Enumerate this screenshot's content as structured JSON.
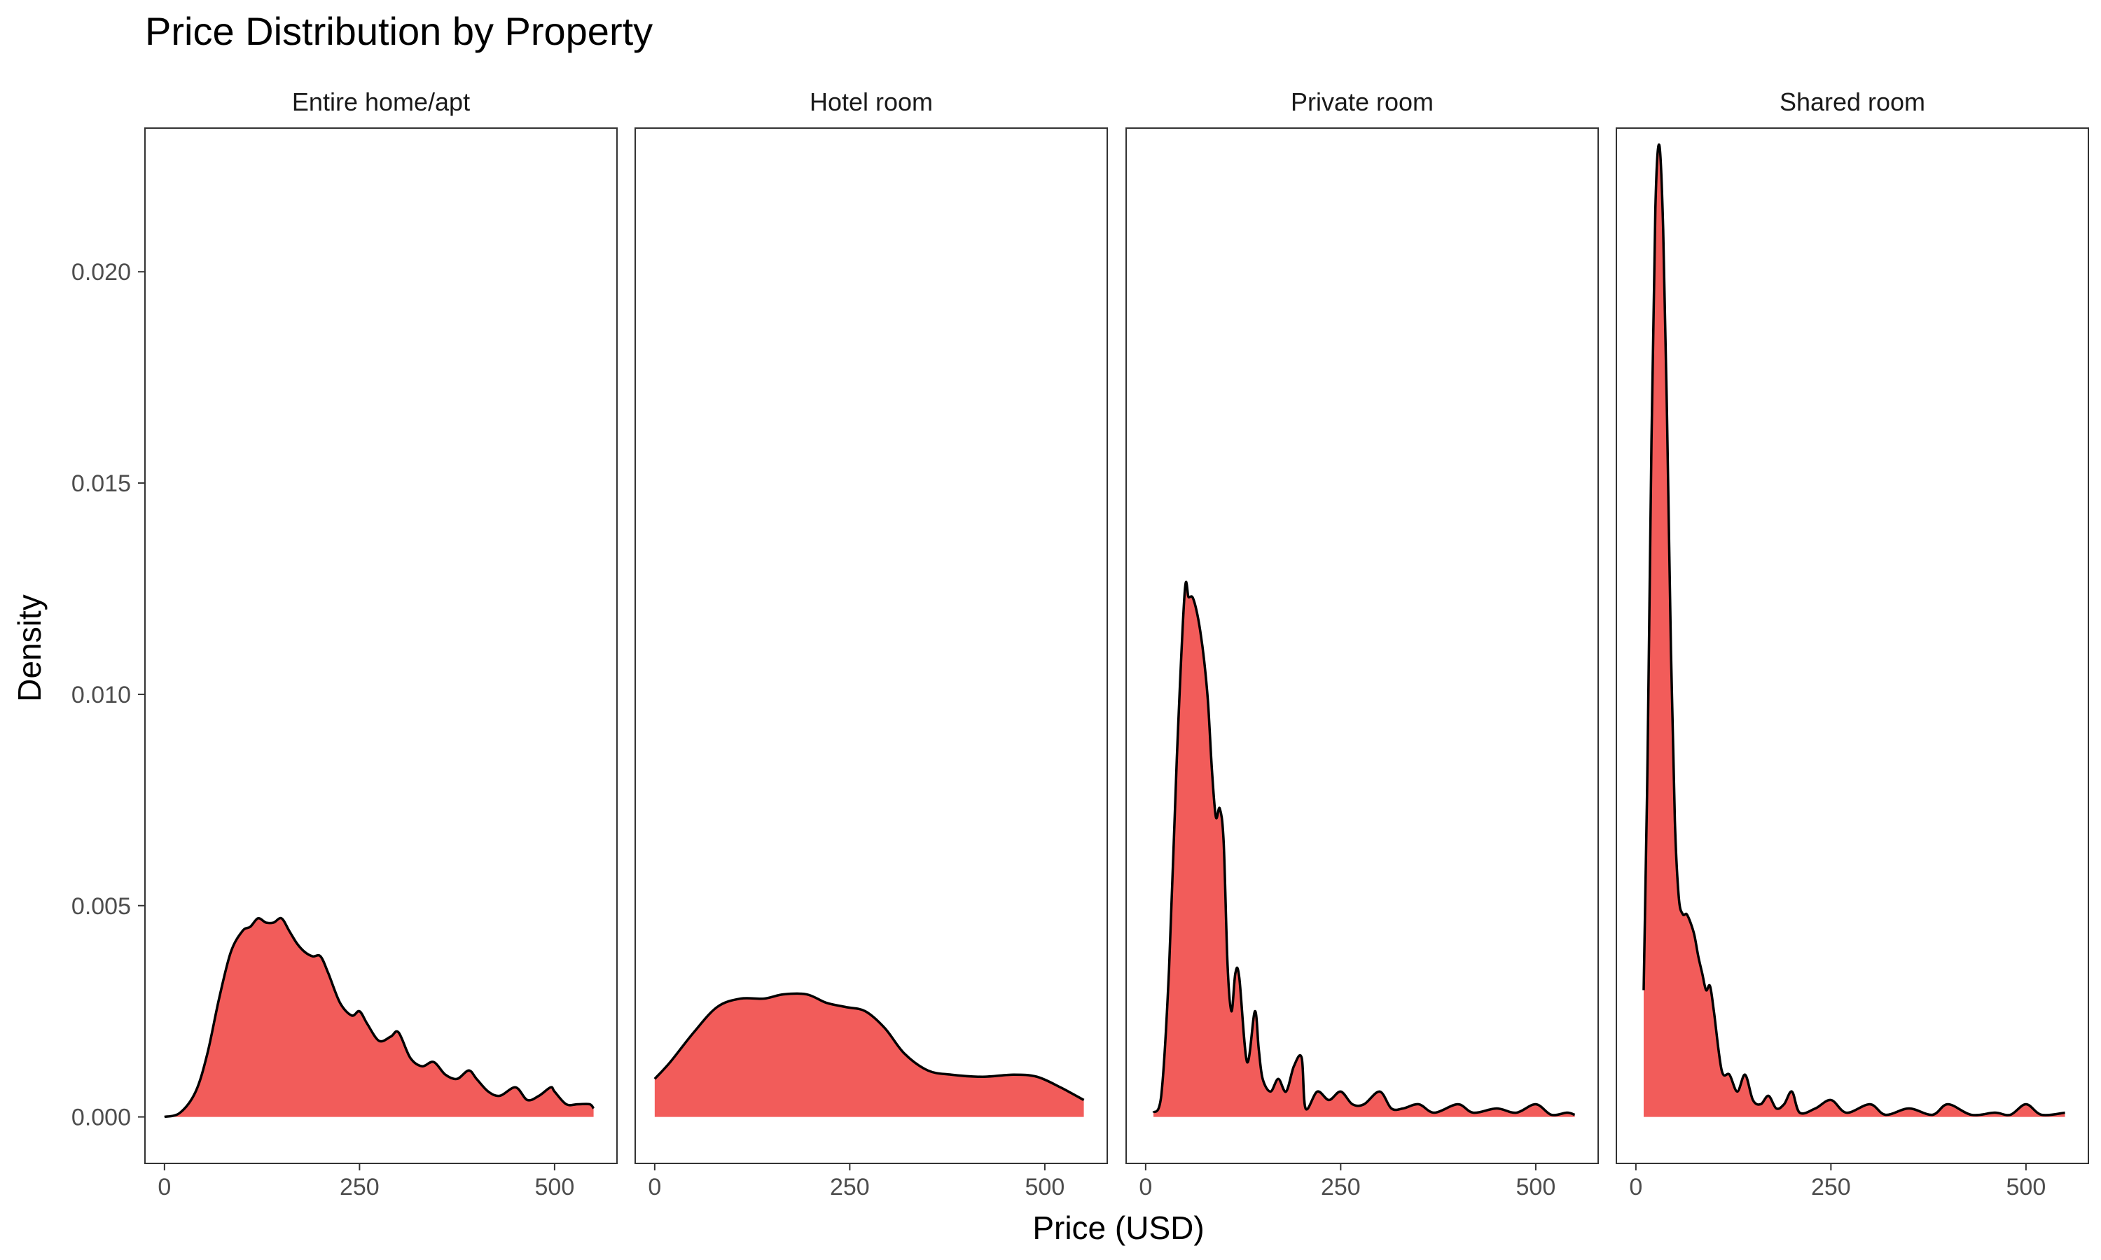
{
  "chart_data": {
    "type": "area",
    "title": "Price Distribution by Property",
    "xlabel": "Price (USD)",
    "ylabel": "Density",
    "xlim": [
      -25,
      580
    ],
    "ylim": [
      -0.0011,
      0.0234
    ],
    "xticks": [
      0,
      250,
      500
    ],
    "xtick_labels": [
      "0",
      "250",
      "500"
    ],
    "yticks": [
      0,
      0.005,
      0.01,
      0.015,
      0.02
    ],
    "ytick_labels": [
      "0.000",
      "0.005",
      "0.010",
      "0.015",
      "0.020"
    ],
    "fill_color": "#F25C5A",
    "line_color": "#000000",
    "grid": false,
    "panels": [
      {
        "name": "Entire home/apt",
        "x": [
          0,
          20,
          40,
          55,
          70,
          85,
          100,
          110,
          120,
          130,
          140,
          150,
          160,
          170,
          180,
          190,
          200,
          210,
          225,
          240,
          250,
          260,
          275,
          290,
          300,
          315,
          330,
          345,
          360,
          375,
          390,
          400,
          415,
          430,
          450,
          465,
          480,
          495,
          500,
          515,
          530,
          545,
          550
        ],
        "y": [
          0.0,
          0.0001,
          0.0006,
          0.0015,
          0.0028,
          0.0039,
          0.0044,
          0.0045,
          0.0047,
          0.0046,
          0.0046,
          0.0047,
          0.0044,
          0.0041,
          0.0039,
          0.0038,
          0.0038,
          0.0034,
          0.0027,
          0.0024,
          0.0025,
          0.0022,
          0.0018,
          0.0019,
          0.002,
          0.0014,
          0.0012,
          0.0013,
          0.001,
          0.0009,
          0.0011,
          0.0009,
          0.0006,
          0.0005,
          0.0007,
          0.0004,
          0.0005,
          0.0007,
          0.0006,
          0.0003,
          0.0003,
          0.0003,
          0.0002
        ]
      },
      {
        "name": "Hotel room",
        "x": [
          0,
          20,
          50,
          80,
          110,
          140,
          165,
          195,
          220,
          245,
          270,
          295,
          320,
          350,
          380,
          420,
          460,
          490,
          520,
          550
        ],
        "y": [
          0.0009,
          0.0013,
          0.002,
          0.0026,
          0.0028,
          0.0028,
          0.0029,
          0.0029,
          0.0027,
          0.0026,
          0.0025,
          0.0021,
          0.0015,
          0.0011,
          0.001,
          0.00095,
          0.001,
          0.00095,
          0.0007,
          0.0004
        ]
      },
      {
        "name": "Private room",
        "x": [
          10,
          20,
          30,
          40,
          50,
          55,
          60,
          65,
          70,
          75,
          80,
          85,
          90,
          95,
          100,
          105,
          110,
          115,
          120,
          130,
          140,
          145,
          150,
          160,
          170,
          180,
          190,
          200,
          205,
          220,
          235,
          250,
          265,
          280,
          300,
          315,
          330,
          350,
          370,
          400,
          420,
          450,
          475,
          500,
          520,
          540,
          550
        ],
        "y": [
          0.0001,
          0.0005,
          0.0035,
          0.0085,
          0.0124,
          0.0123,
          0.0123,
          0.012,
          0.0115,
          0.0108,
          0.0098,
          0.0082,
          0.0071,
          0.0073,
          0.0065,
          0.0036,
          0.0025,
          0.0034,
          0.0033,
          0.0013,
          0.0025,
          0.0016,
          0.0009,
          0.0006,
          0.0009,
          0.0006,
          0.0012,
          0.0014,
          0.0002,
          0.0006,
          0.0004,
          0.0006,
          0.0003,
          0.0003,
          0.0006,
          0.0002,
          0.0002,
          0.0003,
          0.0001,
          0.0003,
          0.0001,
          0.0002,
          0.0001,
          0.0003,
          5e-05,
          0.0001,
          5e-05
        ]
      },
      {
        "name": "Shared room",
        "x": [
          10,
          15,
          20,
          25,
          30,
          35,
          40,
          45,
          50,
          55,
          60,
          65,
          70,
          75,
          80,
          85,
          90,
          95,
          100,
          110,
          120,
          130,
          140,
          150,
          160,
          170,
          180,
          190,
          200,
          210,
          230,
          250,
          270,
          300,
          320,
          350,
          380,
          400,
          430,
          460,
          480,
          500,
          520,
          550
        ],
        "y": [
          0.003,
          0.0085,
          0.016,
          0.0215,
          0.023,
          0.021,
          0.0165,
          0.011,
          0.007,
          0.0052,
          0.0048,
          0.0048,
          0.0046,
          0.0043,
          0.0038,
          0.0034,
          0.003,
          0.0031,
          0.0025,
          0.0011,
          0.001,
          0.0006,
          0.001,
          0.0004,
          0.0003,
          0.0005,
          0.0002,
          0.0003,
          0.0006,
          0.0001,
          0.0002,
          0.0004,
          0.0001,
          0.0003,
          5e-05,
          0.0002,
          5e-05,
          0.0003,
          5e-05,
          0.0001,
          5e-05,
          0.0003,
          5e-05,
          0.0001
        ]
      }
    ]
  }
}
